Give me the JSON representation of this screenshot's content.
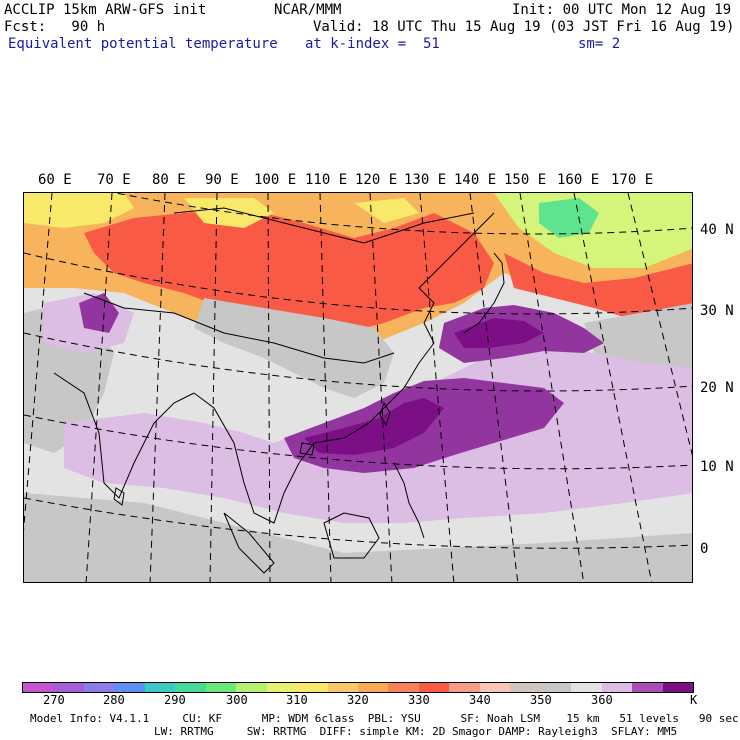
{
  "header": {
    "line1_left": "ACCLIP 15km ARW-GFS init",
    "line1_center": "NCAR/MMM",
    "line1_right": "Init: 00 UTC Mon 12 Aug 19",
    "line2_left": "Fcst:   90 h",
    "line2_right": "Valid: 18 UTC Thu 15 Aug 19 (03 JST Fri 16 Aug 19)",
    "field_name": "Equivalent potential temperature",
    "level": "at k-index =  51",
    "smoothing": "sm= 2"
  },
  "map": {
    "lon_labels": [
      "60 E",
      "70 E",
      "80 E",
      "90 E",
      "100 E",
      "110 E",
      "120 E",
      "130 E",
      "140 E",
      "150 E",
      "160 E",
      "170 E"
    ],
    "lat_labels": [
      "40 N",
      "30 N",
      "20 N",
      "10 N",
      "0"
    ],
    "colors": {
      "ocean": "#e3e3e3",
      "land_gray": "#c7c7c7",
      "lavender": "#dcbde3",
      "purple": "#93359f",
      "deep_purple": "#7c0f86",
      "orange": "#f8b45c",
      "red_orange": "#f85a45",
      "yellow": "#f8e96a",
      "lime": "#d4f57a",
      "green": "#5ee38e",
      "coast": "#000000",
      "grid": "#000000"
    }
  },
  "colorbar": {
    "colors": [
      "#c653cf",
      "#a35fda",
      "#8a7de6",
      "#5f8ff0",
      "#3bc9c4",
      "#45d99a",
      "#6be878",
      "#b5f070",
      "#e8f070",
      "#f8e96a",
      "#f8c86a",
      "#f8aa55",
      "#f8825a",
      "#f85a45",
      "#f89c8a",
      "#f8c6b2",
      "#d0c6c0",
      "#c7c7c7",
      "#e3e3e3",
      "#dcbde3",
      "#a94fb5",
      "#7c0f86"
    ],
    "labels": [
      "270",
      "280",
      "290",
      "300",
      "310",
      "320",
      "330",
      "340",
      "350",
      "360"
    ],
    "unit": "K"
  },
  "footer": {
    "line1": "Model Info: V4.1.1     CU: KF      MP: WDM 6class  PBL: YSU      SF: Noah LSM    15 km   51 levels   90 sec",
    "line2": "LW: RRTMG     SW: RRTMG  DIFF: simple KM: 2D Smagor DAMP: Rayleigh3  SFLAY: MM5"
  }
}
